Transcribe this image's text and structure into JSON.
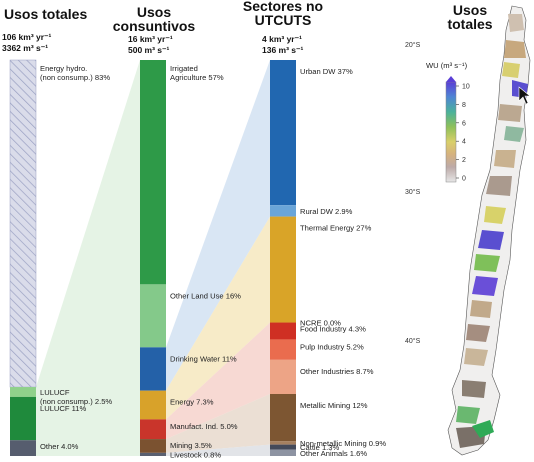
{
  "chart_data": [
    {
      "type": "stacked-bar",
      "title": "Usos totales",
      "units": [
        "106 km³ yr⁻¹",
        "3362 m³ s⁻¹"
      ],
      "segments": [
        {
          "label": "Energy hydro.\n(non consump.)  83%",
          "value": 83,
          "color": "#d9dbe8"
        },
        {
          "label": "LULUCF\n(non consump.)  2.5%",
          "value": 2.5,
          "color": "#8fd18a"
        },
        {
          "label": "LULUCF  11%",
          "value": 11,
          "color": "#1f8a3c"
        },
        {
          "label": "Other  4.0%",
          "value": 4.0,
          "color": "#565d6e"
        }
      ]
    },
    {
      "type": "stacked-bar",
      "title": "Usos consuntivos",
      "units": [
        "16 km³ yr⁻¹",
        "500 m³ s⁻¹"
      ],
      "segments": [
        {
          "label": "Irrigated\nAgriculture  57%",
          "value": 57,
          "color": "#2e9a48"
        },
        {
          "label": "Other Land Use  16%",
          "value": 16,
          "color": "#84c98a"
        },
        {
          "label": "Drinking Water  11%",
          "value": 11,
          "color": "#2461a8"
        },
        {
          "label": "Energy  7.3%",
          "value": 7.3,
          "color": "#d8a22a"
        },
        {
          "label": "Manufact. Ind.  5.0%",
          "value": 5.0,
          "color": "#c9352b"
        },
        {
          "label": "Mining  3.5%",
          "value": 3.5,
          "color": "#7b5230"
        },
        {
          "label": "Livestock  0.8%",
          "value": 0.8,
          "color": "#5a6070"
        }
      ]
    },
    {
      "type": "stacked-bar",
      "title": "Sectores no UTCUTS",
      "units": [
        "4 km³ yr⁻¹",
        "136 m³ s⁻¹"
      ],
      "segments": [
        {
          "label": "Urban DW  37%",
          "value": 37,
          "color": "#2167b0"
        },
        {
          "label": "Rural DW  2.9%",
          "value": 2.9,
          "color": "#6aa5d8"
        },
        {
          "label": "Thermal Energy  27%",
          "value": 27,
          "color": "#d9a428"
        },
        {
          "label": "NCRE  0.0%",
          "value": 0.0,
          "color": "#e9c25c"
        },
        {
          "label": "Food Industry  4.3%",
          "value": 4.3,
          "color": "#cf2f23"
        },
        {
          "label": "Pulp Industry  5.2%",
          "value": 5.2,
          "color": "#ea6c4e"
        },
        {
          "label": "Other Industries  8.7%",
          "value": 8.7,
          "color": "#eda486"
        },
        {
          "label": "Metallic Mining  12%",
          "value": 12,
          "color": "#7d5632"
        },
        {
          "label": "Non-metallic Mining  0.9%",
          "value": 0.9,
          "color": "#a58060"
        },
        {
          "label": "Cattle  1.3%",
          "value": 1.3,
          "color": "#444a5a"
        },
        {
          "label": "Other Animals  1.6%",
          "value": 1.6,
          "color": "#8d93a2"
        }
      ]
    }
  ],
  "map": {
    "title": "Usos totales",
    "colorbar": {
      "label": "WU (m³ s⁻¹)",
      "ticks": [
        "10",
        "8",
        "6",
        "4",
        "2",
        "0"
      ],
      "range": [
        0,
        10
      ],
      "colors": [
        "#5a3fd6",
        "#4f86d4",
        "#4bb29a",
        "#8fc05a",
        "#d9cf6a",
        "#d6b27e",
        "#c9a38a",
        "#bdaaa8",
        "#e6e6e6"
      ]
    },
    "lat_labels": [
      "20°S",
      "30°S",
      "40°S"
    ]
  }
}
